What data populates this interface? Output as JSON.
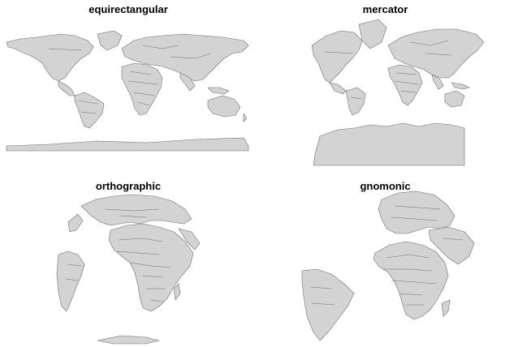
{
  "colors": {
    "land": "#d3d3d3",
    "border": "#6e6e6e",
    "background": "#ffffff"
  },
  "panels": [
    {
      "id": "equirectangular",
      "title": "equirectangular"
    },
    {
      "id": "mercator",
      "title": "mercator"
    },
    {
      "id": "orthographic",
      "title": "orthographic"
    },
    {
      "id": "gnomonic",
      "title": "gnomonic"
    }
  ]
}
